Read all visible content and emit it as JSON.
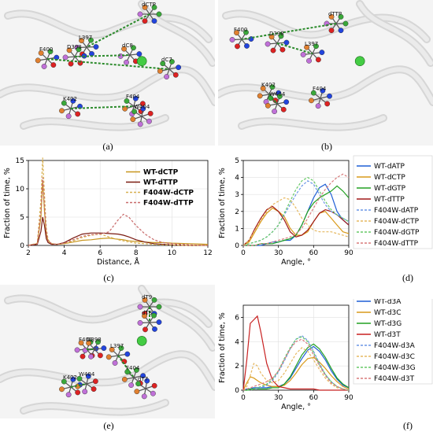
{
  "panels": {
    "a": {
      "label": "(a)",
      "atoms": [
        "dCTP",
        "L397",
        "D398",
        "dC8",
        "F400",
        "dC7",
        "K402",
        "F404",
        "W404"
      ]
    },
    "b": {
      "label": "(b)",
      "atoms": [
        "dTTP",
        "F400",
        "D398",
        "L397",
        "K402",
        "W404",
        "F404"
      ]
    },
    "c": {
      "label": "(c)"
    },
    "d": {
      "label": "(d)"
    },
    "e": {
      "label": "(e)",
      "atoms": [
        "dT9",
        "dT8",
        "F400",
        "D398",
        "L397",
        "F404",
        "K402",
        "W404",
        "dT7"
      ]
    },
    "f": {
      "label": "(f)"
    }
  },
  "colors": {
    "WT-dATP": "#1f5fd6",
    "WT-dCTP": "#d99a1a",
    "WT-dGTP": "#22a022",
    "WT-dTTP": "#a01818",
    "WT-dCTP_c": "#c8961e",
    "WT-dTTP_c": "#7a1a10",
    "F404W-dCTP_c": "#d8b050",
    "F404W-dTTP_c": "#c86a6a"
  },
  "chart_data": [
    {
      "id": "c",
      "type": "line",
      "xlabel": "Distance, Å",
      "ylabel": "Fraction of time, %",
      "xlim": [
        2,
        12
      ],
      "ylim": [
        0,
        15
      ],
      "xticks": [
        2,
        4,
        6,
        8,
        10,
        12
      ],
      "yticks": [
        0,
        5,
        10,
        15
      ],
      "grid": true,
      "legend": "top-right",
      "x": [
        2.0,
        2.5,
        2.7,
        2.8,
        2.9,
        3.0,
        3.1,
        3.3,
        3.6,
        4.0,
        4.5,
        5.0,
        5.5,
        6.0,
        6.5,
        7.0,
        7.3,
        7.6,
        8.0,
        8.5,
        9.0,
        9.5,
        10.0,
        11.0,
        12.0
      ],
      "series": [
        {
          "name": "WT-dCTP",
          "style": "solid",
          "color": "#c8961e",
          "values": [
            0,
            0.3,
            5,
            11.5,
            6,
            2,
            0.8,
            0.3,
            0.2,
            0.3,
            0.6,
            0.9,
            1.0,
            1.2,
            1.3,
            1.1,
            1.0,
            0.8,
            0.7,
            0.6,
            0.5,
            0.5,
            0.4,
            0.3,
            0.2
          ]
        },
        {
          "name": "WT-dTTP",
          "style": "solid",
          "color": "#7a1a10",
          "values": [
            0,
            0.2,
            2.5,
            5.0,
            3.5,
            1.2,
            0.5,
            0.2,
            0.2,
            0.5,
            1.3,
            2.0,
            2.2,
            2.2,
            2.1,
            2.0,
            1.8,
            1.5,
            1.0,
            0.6,
            0.3,
            0.2,
            0.1,
            0,
            0
          ]
        },
        {
          "name": "F404W-dCTP",
          "style": "dashed",
          "color": "#d8b050",
          "values": [
            0,
            0.4,
            8,
            15.5,
            9,
            3,
            1,
            0.3,
            0.2,
            0.3,
            0.8,
            1.4,
            1.8,
            2.0,
            1.5,
            1.0,
            0.8,
            0.6,
            0.4,
            0.3,
            0.2,
            0.1,
            0.1,
            0,
            0
          ]
        },
        {
          "name": "F404W-dTTP",
          "style": "dashed",
          "color": "#c86a6a",
          "values": [
            0,
            0.3,
            6,
            12,
            7,
            2.5,
            0.8,
            0.3,
            0.2,
            0.4,
            1.0,
            1.6,
            1.9,
            2.0,
            2.4,
            4.5,
            5.5,
            5.0,
            3.5,
            2.0,
            1.0,
            0.5,
            0.3,
            0.1,
            0
          ]
        }
      ]
    },
    {
      "id": "d",
      "type": "line",
      "xlabel": "Angle, °",
      "ylabel": "Fraction of time, %",
      "xlim": [
        0,
        90
      ],
      "ylim": [
        0,
        5
      ],
      "xticks": [
        0,
        30,
        60,
        90
      ],
      "yticks": [
        0,
        1,
        2,
        3,
        4,
        5
      ],
      "grid": true,
      "legend": "outside-right",
      "x": [
        0,
        5,
        10,
        15,
        20,
        25,
        30,
        35,
        40,
        45,
        50,
        55,
        60,
        65,
        70,
        75,
        80,
        85,
        90
      ],
      "series": [
        {
          "name": "WT-dATP",
          "style": "solid",
          "color": "#1f5fd6",
          "values": [
            0,
            0,
            0,
            0,
            0.1,
            0.2,
            0.2,
            0.3,
            0.3,
            0.6,
            1.2,
            2.0,
            2.8,
            3.4,
            3.6,
            3.0,
            2.0,
            1.5,
            1.2
          ]
        },
        {
          "name": "WT-dCTP",
          "style": "solid",
          "color": "#d99a1a",
          "values": [
            0,
            0.2,
            0.8,
            1.4,
            1.9,
            2.2,
            2.0,
            1.7,
            1.0,
            0.6,
            0.6,
            0.8,
            1.4,
            1.9,
            2.0,
            1.6,
            1.2,
            0.8,
            0.7
          ]
        },
        {
          "name": "WT-dGTP",
          "style": "solid",
          "color": "#22a022",
          "values": [
            0,
            0,
            0,
            0.1,
            0.1,
            0.1,
            0.2,
            0.3,
            0.4,
            0.6,
            1.2,
            2.0,
            2.5,
            2.8,
            3.0,
            3.2,
            3.5,
            3.2,
            2.8
          ]
        },
        {
          "name": "WT-dTTP",
          "style": "solid",
          "color": "#a01818",
          "values": [
            0,
            0.3,
            1.0,
            1.6,
            2.1,
            2.3,
            2.0,
            1.5,
            0.8,
            0.5,
            0.6,
            0.9,
            1.4,
            1.9,
            2.1,
            2.0,
            1.8,
            1.5,
            1.2
          ]
        },
        {
          "name": "F404W-dATP",
          "style": "dashed",
          "color": "#6a95e6",
          "values": [
            0,
            0.1,
            0.2,
            0.3,
            0.5,
            0.8,
            1.2,
            1.8,
            2.4,
            3.0,
            3.5,
            3.8,
            3.6,
            3.0,
            2.4,
            2.0,
            1.8,
            1.6,
            1.4
          ]
        },
        {
          "name": "F404W-dCTP",
          "style": "dashed",
          "color": "#e6b860",
          "values": [
            0,
            0.3,
            0.9,
            1.5,
            2.0,
            2.4,
            2.6,
            2.8,
            2.7,
            2.2,
            1.6,
            1.2,
            0.9,
            0.8,
            0.8,
            0.8,
            0.7,
            0.6,
            0.5
          ]
        },
        {
          "name": "F404W-dGTP",
          "style": "dashed",
          "color": "#66c866",
          "values": [
            0,
            0.1,
            0.2,
            0.3,
            0.5,
            0.8,
            1.2,
            1.9,
            2.6,
            3.3,
            3.8,
            4.0,
            3.8,
            3.2,
            2.6,
            2.1,
            1.8,
            1.6,
            1.4
          ]
        },
        {
          "name": "F404W-dTTP",
          "style": "dashed",
          "color": "#d87a7a",
          "values": [
            0,
            0,
            0,
            0.1,
            0.1,
            0.2,
            0.3,
            0.4,
            0.5,
            0.7,
            1.0,
            1.6,
            2.2,
            2.8,
            3.3,
            3.7,
            4.0,
            4.2,
            4.0
          ]
        }
      ]
    },
    {
      "id": "f",
      "type": "line",
      "xlabel": "Angle, °",
      "ylabel": "Fraction of time, %",
      "xlim": [
        0,
        90
      ],
      "ylim": [
        0,
        7
      ],
      "xticks": [
        0,
        30,
        60,
        90
      ],
      "yticks": [
        0,
        2,
        4,
        6
      ],
      "grid": true,
      "legend": "outside-right",
      "x": [
        0,
        3,
        6,
        9,
        12,
        15,
        20,
        25,
        30,
        35,
        40,
        45,
        50,
        55,
        60,
        65,
        70,
        75,
        80,
        85,
        90
      ],
      "series": [
        {
          "name": "WT-d3A",
          "style": "solid",
          "color": "#1f5fd6",
          "values": [
            0,
            0.1,
            0.1,
            0.2,
            0.2,
            0.2,
            0.2,
            0.3,
            0.3,
            0.5,
            1.0,
            1.8,
            2.6,
            3.3,
            3.6,
            3.2,
            2.5,
            1.6,
            0.9,
            0.4,
            0.2
          ]
        },
        {
          "name": "WT-d3C",
          "style": "solid",
          "color": "#d99a1a",
          "values": [
            0,
            0.6,
            1.1,
            1.0,
            0.8,
            0.6,
            0.4,
            0.3,
            0.3,
            0.4,
            0.8,
            1.4,
            2.1,
            2.6,
            2.7,
            2.3,
            1.8,
            1.2,
            0.7,
            0.3,
            0.1
          ]
        },
        {
          "name": "WT-d3G",
          "style": "solid",
          "color": "#22a022",
          "values": [
            0,
            0,
            0.1,
            0.1,
            0.1,
            0.1,
            0.1,
            0.2,
            0.2,
            0.5,
            1.1,
            2.0,
            2.9,
            3.5,
            3.8,
            3.4,
            2.7,
            1.8,
            1.0,
            0.5,
            0.2
          ]
        },
        {
          "name": "WT-d3T",
          "style": "solid",
          "color": "#c82020",
          "values": [
            0,
            2.5,
            5.5,
            5.8,
            6.1,
            4.8,
            2.2,
            0.8,
            0.3,
            0.2,
            0.1,
            0.1,
            0.1,
            0.1,
            0.1,
            0,
            0,
            0,
            0,
            0,
            0
          ]
        },
        {
          "name": "F404W-d3A",
          "style": "dashed",
          "color": "#6a95e6",
          "values": [
            0,
            0,
            0,
            0.1,
            0.1,
            0.2,
            0.4,
            0.8,
            1.5,
            2.4,
            3.4,
            4.2,
            4.5,
            4.1,
            3.2,
            2.2,
            1.3,
            0.7,
            0.3,
            0.1,
            0
          ]
        },
        {
          "name": "F404W-d3C",
          "style": "dashed",
          "color": "#e6b860",
          "values": [
            0,
            0.3,
            1.2,
            2.2,
            2.0,
            1.4,
            0.8,
            0.6,
            0.8,
            1.4,
            2.2,
            3.0,
            3.5,
            3.2,
            2.5,
            1.7,
            1.0,
            0.5,
            0.2,
            0.1,
            0
          ]
        },
        {
          "name": "F404W-d3G",
          "style": "dashed",
          "color": "#66c866",
          "values": [
            0,
            0,
            0,
            0.1,
            0.2,
            0.3,
            0.5,
            0.9,
            1.6,
            2.6,
            3.5,
            4.2,
            4.4,
            4.0,
            3.1,
            2.1,
            1.3,
            0.7,
            0.3,
            0.1,
            0
          ]
        },
        {
          "name": "F404W-d3T",
          "style": "dashed",
          "color": "#d87a7a",
          "values": [
            0,
            0.1,
            0.2,
            0.3,
            0.4,
            0.5,
            0.7,
            1.0,
            1.6,
            2.5,
            3.4,
            4.0,
            4.2,
            3.8,
            2.9,
            2.0,
            1.2,
            0.6,
            0.3,
            0.1,
            0
          ]
        }
      ]
    }
  ]
}
